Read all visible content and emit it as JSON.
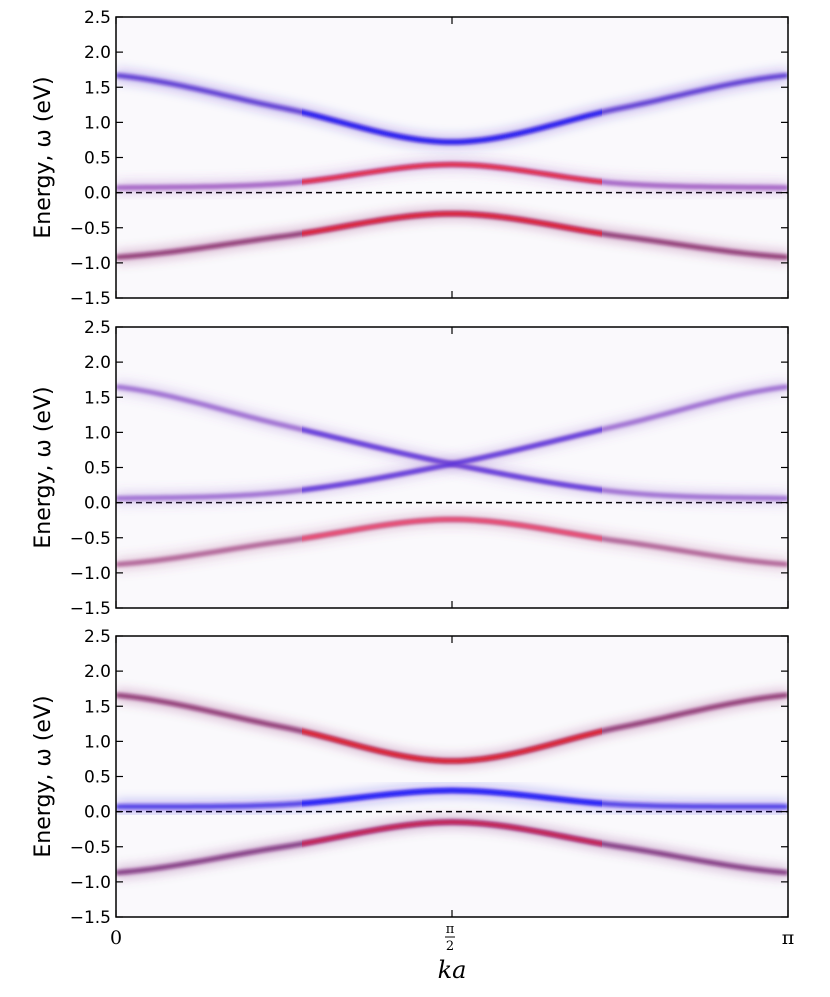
{
  "chart_data": [
    {
      "type": "line",
      "panel": "top",
      "ylabel": "Energy, ω (eV)",
      "ylim": [
        -1.5,
        2.5
      ],
      "yticks": [
        "2.5",
        "2.0",
        "1.5",
        "1.0",
        "0.5",
        "0.0",
        "-0.5",
        "-1.0",
        "-1.5"
      ],
      "xlim": [
        0,
        3.14159
      ],
      "reference_line": {
        "y": 0.0,
        "style": "dashed"
      },
      "series": [
        {
          "name": "upper band",
          "color": "#3a10c8",
          "highlight_color": "#1a1aff",
          "x": [
            0,
            0.785,
            1.571,
            2.356,
            3.14159
          ],
          "values": [
            1.67,
            1.2,
            0.72,
            1.2,
            1.67
          ]
        },
        {
          "name": "middle band",
          "color": "#9040b8",
          "highlight_color": "#ff1010",
          "x": [
            0,
            0.785,
            1.571,
            2.356,
            3.14159
          ],
          "values": [
            0.07,
            0.13,
            0.4,
            0.13,
            0.07
          ]
        },
        {
          "name": "lower band",
          "color": "#7a0a5a",
          "highlight_color": "#ff1020",
          "x": [
            0,
            0.785,
            1.571,
            2.356,
            3.14159
          ],
          "values": [
            -0.92,
            -0.62,
            -0.3,
            -0.62,
            -0.92
          ]
        }
      ]
    },
    {
      "type": "line",
      "panel": "middle",
      "ylabel": "Energy, ω (eV)",
      "ylim": [
        -1.5,
        2.5
      ],
      "yticks": [
        "2.5",
        "2.0",
        "1.5",
        "1.0",
        "0.5",
        "0.0",
        "-0.5",
        "-1.0",
        "-1.5"
      ],
      "xlim": [
        0,
        3.14159
      ],
      "reference_line": {
        "y": 0.0,
        "style": "dashed"
      },
      "series": [
        {
          "name": "descending band",
          "color": "#8a50c8",
          "highlight_color": "#5030e0",
          "x": [
            0,
            0.785,
            1.571,
            2.356,
            3.14159
          ],
          "values": [
            1.65,
            1.1,
            0.55,
            0.15,
            0.06
          ]
        },
        {
          "name": "ascending band",
          "color": "#8a50c8",
          "highlight_color": "#5030e0",
          "x": [
            0,
            0.785,
            1.571,
            2.356,
            3.14159
          ],
          "values": [
            0.06,
            0.15,
            0.55,
            1.1,
            1.65
          ]
        },
        {
          "name": "lower band",
          "color": "#a04080",
          "highlight_color": "#ff4060",
          "x": [
            0,
            0.785,
            1.571,
            2.356,
            3.14159
          ],
          "values": [
            -0.88,
            -0.55,
            -0.24,
            -0.55,
            -0.88
          ]
        }
      ]
    },
    {
      "type": "line",
      "panel": "bottom",
      "ylabel": "Energy, ω (eV)",
      "ylim": [
        -1.5,
        2.5
      ],
      "yticks": [
        "2.5",
        "2.0",
        "1.5",
        "1.0",
        "0.5",
        "0.0",
        "-0.5",
        "-1.0",
        "-1.5"
      ],
      "xlim": [
        0,
        3.14159
      ],
      "xlabel": "ka",
      "reference_line": {
        "y": 0.0,
        "style": "dashed"
      },
      "series": [
        {
          "name": "upper band",
          "color": "#7a0a5a",
          "highlight_color": "#ff1010",
          "x": [
            0,
            0.785,
            1.571,
            2.356,
            3.14159
          ],
          "values": [
            1.66,
            1.2,
            0.72,
            1.2,
            1.66
          ]
        },
        {
          "name": "middle band",
          "color": "#2a10e0",
          "highlight_color": "#1010ff",
          "x": [
            0,
            0.785,
            1.571,
            2.356,
            3.14159
          ],
          "values": [
            0.07,
            0.1,
            0.3,
            0.1,
            0.07
          ]
        },
        {
          "name": "lower band",
          "color": "#6a0a6a",
          "highlight_color": "#e01040",
          "x": [
            0,
            0.785,
            1.571,
            2.356,
            3.14159
          ],
          "values": [
            -0.87,
            -0.5,
            -0.15,
            -0.5,
            -0.87
          ]
        }
      ]
    }
  ],
  "xaxis": {
    "label": "ka",
    "ticks": [
      {
        "value": 0,
        "label": "0"
      },
      {
        "value": 1.5708,
        "label_num": "π",
        "label_den": "2"
      },
      {
        "value": 3.14159,
        "label": "π"
      }
    ]
  },
  "colors": {
    "background": "#ffffff",
    "axes": "#000000",
    "glow": "#f4f2f8"
  }
}
